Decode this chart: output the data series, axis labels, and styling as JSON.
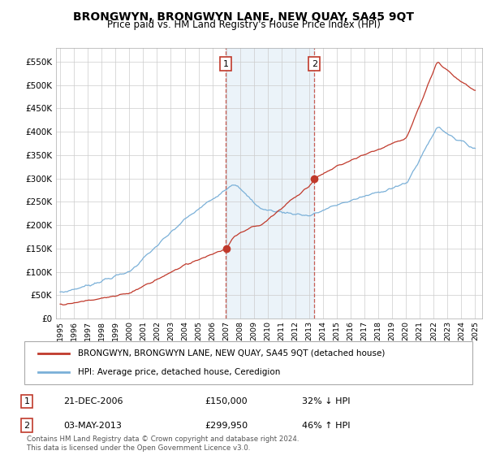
{
  "title": "BRONGWYN, BRONGWYN LANE, NEW QUAY, SA45 9QT",
  "subtitle": "Price paid vs. HM Land Registry's House Price Index (HPI)",
  "title_fontsize": 10,
  "subtitle_fontsize": 8.5,
  "ylabel_ticks": [
    "£0",
    "£50K",
    "£100K",
    "£150K",
    "£200K",
    "£250K",
    "£300K",
    "£350K",
    "£400K",
    "£450K",
    "£500K",
    "£550K"
  ],
  "ytick_values": [
    0,
    50000,
    100000,
    150000,
    200000,
    250000,
    300000,
    350000,
    400000,
    450000,
    500000,
    550000
  ],
  "ylim": [
    0,
    580000
  ],
  "hpi_color": "#7ab0d8",
  "price_color": "#c0392b",
  "marker_color": "#c0392b",
  "vline_color": "#c0392b",
  "shade_color": "#c8dff0",
  "legend_label_price": "BRONGWYN, BRONGWYN LANE, NEW QUAY, SA45 9QT (detached house)",
  "legend_label_hpi": "HPI: Average price, detached house, Ceredigion",
  "annotation1_date": "21-DEC-2006",
  "annotation1_price": "£150,000",
  "annotation1_hpi": "32% ↓ HPI",
  "annotation2_date": "03-MAY-2013",
  "annotation2_price": "£299,950",
  "annotation2_hpi": "46% ↑ HPI",
  "footer": "Contains HM Land Registry data © Crown copyright and database right 2024.\nThis data is licensed under the Open Government Licence v3.0.",
  "sale1_year": 2006.97,
  "sale1_price": 150000,
  "sale2_year": 2013.37,
  "sale2_price": 299950,
  "grid_color": "#cccccc",
  "background_color": "#ffffff"
}
